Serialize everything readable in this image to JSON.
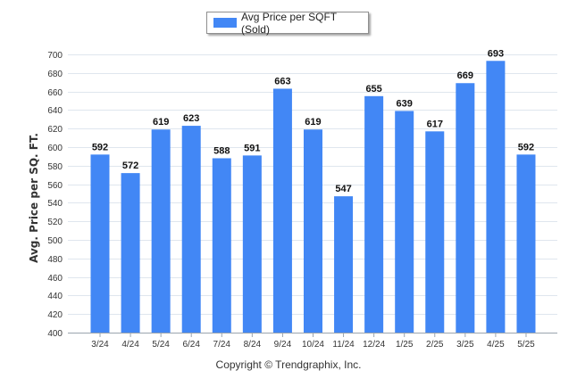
{
  "legend": {
    "label": "Avg Price per SQFT (Sold)"
  },
  "footer": {
    "copyright": "Copyright © Trendgraphix, Inc."
  },
  "colors": {
    "bar": "#4287f5",
    "grid": "#dfe6ee",
    "axis": "#9aa4ae",
    "tick_text": "#333333"
  },
  "chart_data": {
    "type": "bar",
    "categories": [
      "3/24",
      "4/24",
      "5/24",
      "6/24",
      "7/24",
      "8/24",
      "9/24",
      "10/24",
      "11/24",
      "12/24",
      "1/25",
      "2/25",
      "3/25",
      "4/25",
      "5/25"
    ],
    "series": [
      {
        "name": "Avg Price per SQFT (Sold)",
        "values": [
          592,
          572,
          619,
          623,
          588,
          591,
          663,
          619,
          547,
          655,
          639,
          617,
          669,
          693,
          592
        ]
      }
    ],
    "ylabel": "Avg. Price per SQ. FT.",
    "xlabel": "",
    "ylim": [
      400,
      700
    ],
    "yticks": [
      400,
      420,
      440,
      460,
      480,
      500,
      520,
      540,
      560,
      580,
      600,
      620,
      640,
      660,
      680,
      700
    ],
    "grid": true,
    "legend_position": "top-center"
  }
}
